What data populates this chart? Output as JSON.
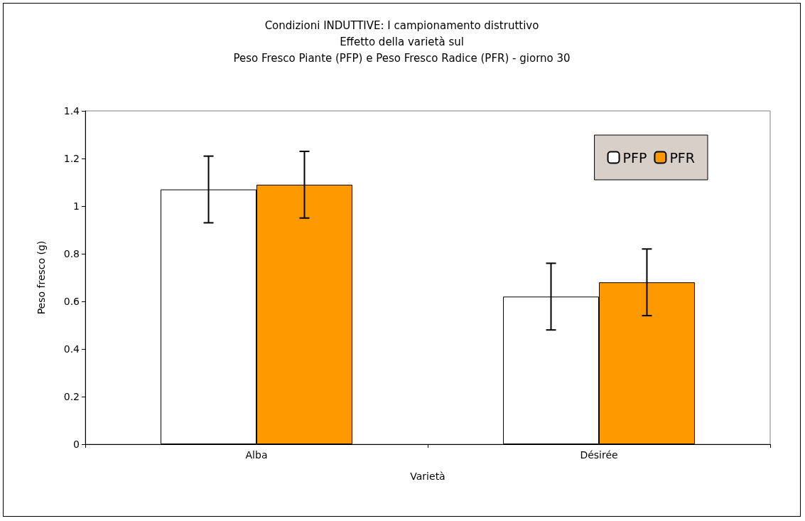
{
  "chart_data": {
    "type": "bar",
    "title": "Condizioni INDUTTIVE: I campionamento distruttivo\nEffetto della varietà sul\nPeso Fresco Piante (PFP) e Peso Fresco Radice (PFR) - giorno 30",
    "xlabel": "Varietà",
    "ylabel": "Peso fresco (g)",
    "categories": [
      "Alba",
      "Désirée"
    ],
    "series": [
      {
        "name": "PFP",
        "color": "#ffffff",
        "values": [
          1.07,
          0.62
        ],
        "errors": [
          0.14,
          0.14
        ]
      },
      {
        "name": "PFR",
        "color": "#ff9900",
        "values": [
          1.09,
          0.68
        ],
        "errors": [
          0.14,
          0.14
        ]
      }
    ],
    "ylim": [
      0,
      1.4
    ],
    "yticks": [
      0,
      0.2,
      0.4,
      0.6,
      0.8,
      1,
      1.2,
      1.4
    ],
    "grid": false,
    "legend": "top right"
  }
}
